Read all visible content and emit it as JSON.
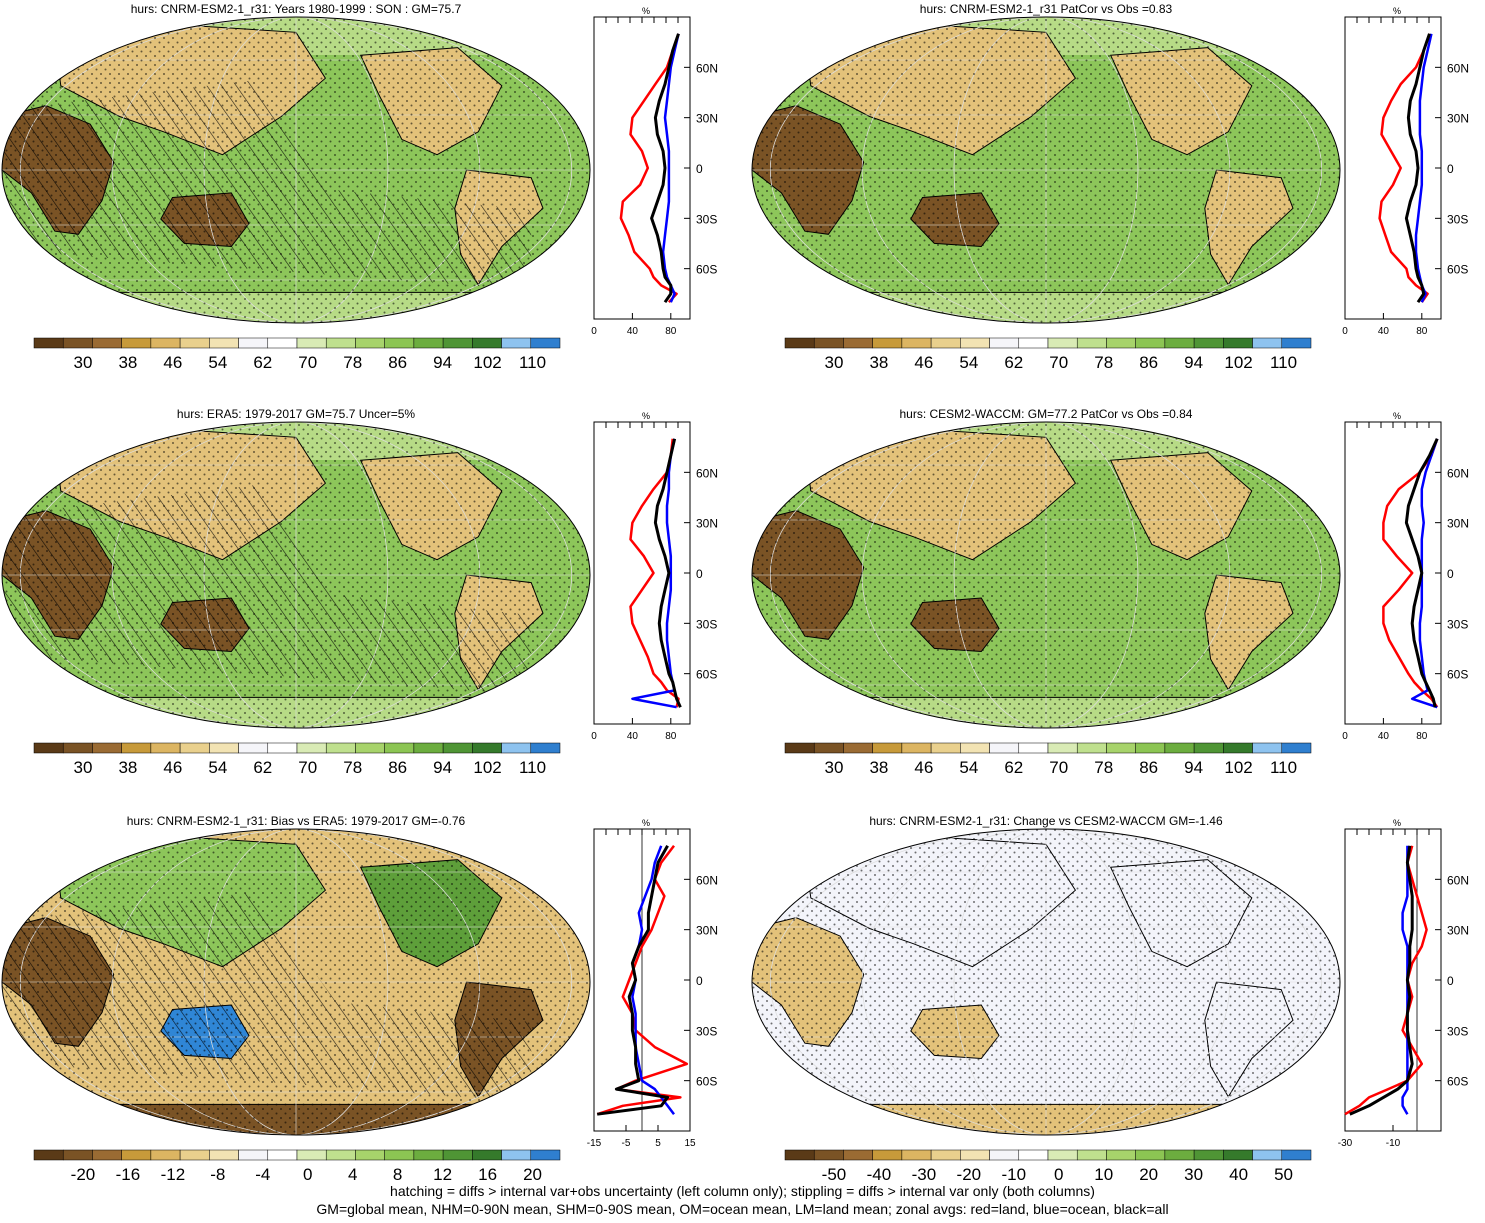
{
  "palettes": {
    "abs": [
      "#5a3a17",
      "#7a5325",
      "#9a6b33",
      "#c79a3a",
      "#dcb562",
      "#e9d08d",
      "#f2e3b3",
      "#f5f5f9",
      "#ffffff",
      "#d9ebb5",
      "#bfe08e",
      "#a7d36b",
      "#8cc553",
      "#6cad3f",
      "#4f9535",
      "#357a2b",
      "#8ec3ef",
      "#2f7fcf"
    ],
    "land_brown": "#7a5325",
    "land_tan": "#e3c27a",
    "light_green": "#b7db86",
    "mid_green": "#8dc65a",
    "dark_green": "#5e9f3a",
    "near_white": "#f3f4fa",
    "blue": "#2f86d6",
    "line_land": "#ff0000",
    "line_ocean": "#0000ff",
    "line_all": "#000000"
  },
  "panels": [
    {
      "id": "p1",
      "title": "hurs: CNRM-ESM2-1_r31: Years 1980-1999 : SON : GM=75.7",
      "kind": "abs",
      "hatch": true,
      "colorbar_labels": [
        "30",
        "38",
        "46",
        "54",
        "62",
        "70",
        "78",
        "86",
        "94",
        "102",
        "110"
      ]
    },
    {
      "id": "p2",
      "title": "hurs: CNRM-ESM2-1_r31 PatCor vs Obs =0.83",
      "kind": "abs",
      "hatch": false,
      "colorbar_labels": [
        "30",
        "38",
        "46",
        "54",
        "62",
        "70",
        "78",
        "86",
        "94",
        "102",
        "110"
      ]
    },
    {
      "id": "p3",
      "title": "hurs: ERA5: 1979-2017 GM=75.7 Uncer=5%",
      "kind": "abs",
      "hatch": true,
      "colorbar_labels": [
        "30",
        "38",
        "46",
        "54",
        "62",
        "70",
        "78",
        "86",
        "94",
        "102",
        "110"
      ]
    },
    {
      "id": "p4",
      "title": "hurs: CESM2-WACCM: GM=77.2 PatCor vs Obs =0.84",
      "kind": "abs",
      "hatch": false,
      "colorbar_labels": [
        "30",
        "38",
        "46",
        "54",
        "62",
        "70",
        "78",
        "86",
        "94",
        "102",
        "110"
      ]
    },
    {
      "id": "p5",
      "title": "hurs: CNRM-ESM2-1_r31: Bias vs ERA5: 1979-2017  GM=-0.76",
      "kind": "bias",
      "hatch": true,
      "colorbar_labels": [
        "-20",
        "-16",
        "-12",
        "-8",
        "-4",
        "0",
        "4",
        "8",
        "12",
        "16",
        "20"
      ]
    },
    {
      "id": "p6",
      "title": "hurs: CNRM-ESM2-1_r31: Change vs CESM2-WACCM GM=-1.46",
      "kind": "change",
      "hatch": false,
      "colorbar_labels": [
        "-50",
        "-40",
        "-30",
        "-20",
        "-10",
        "0",
        "10",
        "20",
        "30",
        "40",
        "50"
      ]
    }
  ],
  "chart_data": [
    {
      "type": "line",
      "panel": "p1",
      "title": "%",
      "xlim": [
        0,
        100
      ],
      "x_ticks": [
        "0",
        "40",
        "80"
      ],
      "y_ticks": [
        "60N",
        "30N",
        "0",
        "30S",
        "60S"
      ],
      "lat": [
        80,
        70,
        60,
        50,
        40,
        30,
        20,
        10,
        0,
        -10,
        -20,
        -30,
        -40,
        -50,
        -60,
        -65,
        -70,
        -75,
        -80
      ],
      "series": [
        {
          "name": "land",
          "color": "#ff0000",
          "values": [
            88,
            82,
            76,
            64,
            52,
            40,
            38,
            50,
            56,
            48,
            30,
            28,
            36,
            42,
            58,
            62,
            70,
            86,
            78
          ]
        },
        {
          "name": "ocean",
          "color": "#0000ff",
          "values": [
            88,
            84,
            80,
            78,
            76,
            74,
            76,
            78,
            78,
            78,
            78,
            76,
            74,
            72,
            74,
            76,
            80,
            84,
            80
          ]
        },
        {
          "name": "all",
          "color": "#000000",
          "values": [
            88,
            82,
            78,
            74,
            68,
            64,
            66,
            72,
            74,
            72,
            66,
            60,
            66,
            70,
            72,
            74,
            80,
            80,
            74
          ]
        }
      ]
    },
    {
      "type": "line",
      "panel": "p2",
      "title": "%",
      "xlim": [
        0,
        100
      ],
      "x_ticks": [
        "0",
        "40",
        "80"
      ],
      "y_ticks": [
        "60N",
        "30N",
        "0",
        "30S",
        "60S"
      ],
      "lat": [
        80,
        70,
        60,
        50,
        40,
        30,
        20,
        10,
        0,
        -10,
        -20,
        -30,
        -40,
        -50,
        -60,
        -65,
        -70,
        -75,
        -80
      ],
      "series": [
        {
          "name": "land",
          "color": "#ff0000",
          "values": [
            88,
            82,
            74,
            58,
            48,
            40,
            38,
            48,
            58,
            50,
            38,
            36,
            42,
            48,
            64,
            66,
            74,
            86,
            80
          ]
        },
        {
          "name": "ocean",
          "color": "#0000ff",
          "values": [
            90,
            86,
            82,
            80,
            78,
            78,
            78,
            80,
            80,
            80,
            78,
            76,
            74,
            74,
            76,
            78,
            80,
            84,
            80
          ]
        },
        {
          "name": "all",
          "color": "#000000",
          "values": [
            88,
            82,
            78,
            74,
            68,
            66,
            68,
            74,
            76,
            74,
            68,
            64,
            68,
            72,
            74,
            76,
            80,
            82,
            76
          ]
        }
      ]
    },
    {
      "type": "line",
      "panel": "p3",
      "title": "%",
      "xlim": [
        0,
        100
      ],
      "x_ticks": [
        "0",
        "40",
        "80"
      ],
      "y_ticks": [
        "60N",
        "30N",
        "0",
        "30S",
        "60S"
      ],
      "lat": [
        80,
        70,
        60,
        50,
        40,
        30,
        20,
        10,
        0,
        -10,
        -20,
        -30,
        -40,
        -50,
        -60,
        -65,
        -70,
        -75,
        -80
      ],
      "series": [
        {
          "name": "land",
          "color": "#ff0000",
          "values": [
            82,
            80,
            76,
            62,
            50,
            40,
            38,
            52,
            62,
            50,
            38,
            40,
            48,
            56,
            62,
            70,
            76,
            88,
            86
          ]
        },
        {
          "name": "ocean",
          "color": "#0000ff",
          "values": [
            84,
            80,
            78,
            78,
            76,
            76,
            78,
            80,
            80,
            80,
            78,
            76,
            76,
            78,
            80,
            82,
            84,
            40,
            86
          ]
        },
        {
          "name": "all",
          "color": "#000000",
          "values": [
            84,
            80,
            76,
            72,
            66,
            64,
            68,
            74,
            78,
            74,
            70,
            68,
            70,
            74,
            78,
            82,
            84,
            86,
            90
          ]
        }
      ]
    },
    {
      "type": "line",
      "panel": "p4",
      "title": "%",
      "xlim": [
        0,
        100
      ],
      "x_ticks": [
        "0",
        "40",
        "80"
      ],
      "y_ticks": [
        "60N",
        "30N",
        "0",
        "30S",
        "60S"
      ],
      "lat": [
        80,
        70,
        60,
        50,
        40,
        30,
        20,
        10,
        0,
        -10,
        -20,
        -30,
        -40,
        -50,
        -60,
        -65,
        -70,
        -75,
        -80
      ],
      "series": [
        {
          "name": "land",
          "color": "#ff0000",
          "values": [
            96,
            90,
            78,
            56,
            44,
            40,
            40,
            54,
            70,
            56,
            40,
            40,
            46,
            56,
            66,
            72,
            80,
            90,
            96
          ]
        },
        {
          "name": "ocean",
          "color": "#0000ff",
          "values": [
            96,
            90,
            84,
            80,
            80,
            82,
            80,
            80,
            80,
            80,
            80,
            78,
            78,
            80,
            82,
            84,
            86,
            70,
            96
          ]
        },
        {
          "name": "all",
          "color": "#000000",
          "values": [
            96,
            88,
            78,
            72,
            66,
            64,
            70,
            76,
            80,
            76,
            72,
            70,
            72,
            76,
            80,
            84,
            88,
            92,
            94
          ]
        }
      ]
    },
    {
      "type": "line",
      "panel": "p5",
      "title": "%",
      "xlim": [
        -15,
        15
      ],
      "x_ticks": [
        "-15",
        "-5",
        "5",
        "15"
      ],
      "y_ticks": [
        "60N",
        "30N",
        "0",
        "30S",
        "60S"
      ],
      "lat": [
        80,
        70,
        60,
        50,
        40,
        30,
        20,
        10,
        0,
        -10,
        -20,
        -30,
        -40,
        -50,
        -60,
        -65,
        -70,
        -75,
        -80
      ],
      "series": [
        {
          "name": "land",
          "color": "#ff0000",
          "values": [
            10,
            6,
            4,
            7,
            5,
            3,
            0,
            -2,
            -4,
            -6,
            -3,
            -2,
            4,
            14,
            -2,
            -8,
            12,
            -6,
            -14
          ]
        },
        {
          "name": "ocean",
          "color": "#0000ff",
          "values": [
            6,
            4,
            3,
            1,
            -1,
            0,
            -1,
            -3,
            -2,
            -3,
            -2,
            -2,
            -2,
            -1,
            0,
            4,
            6,
            8,
            10
          ]
        },
        {
          "name": "all",
          "color": "#000000",
          "values": [
            8,
            5,
            4,
            3,
            2,
            2,
            -1,
            -3,
            -2,
            -4,
            -3,
            -3,
            -2,
            -2,
            -1,
            -8,
            8,
            6,
            -14
          ]
        }
      ]
    },
    {
      "type": "line",
      "panel": "p6",
      "title": "%",
      "xlim": [
        -30,
        10
      ],
      "x_ticks": [
        "-30",
        "-10"
      ],
      "y_ticks": [
        "60N",
        "30N",
        "0",
        "30S",
        "60S"
      ],
      "lat": [
        80,
        70,
        60,
        50,
        40,
        30,
        20,
        10,
        0,
        -10,
        -20,
        -30,
        -40,
        -50,
        -60,
        -65,
        -70,
        -75,
        -80
      ],
      "series": [
        {
          "name": "land",
          "color": "#ff0000",
          "values": [
            -2,
            -4,
            -2,
            0,
            2,
            4,
            2,
            -2,
            -4,
            -2,
            -4,
            -6,
            -2,
            2,
            -4,
            -12,
            -20,
            -24,
            -30
          ]
        },
        {
          "name": "ocean",
          "color": "#0000ff",
          "values": [
            -4,
            -4,
            -4,
            -4,
            -6,
            -6,
            -4,
            -4,
            -4,
            -4,
            -4,
            -4,
            -4,
            -4,
            -4,
            -4,
            -6,
            -6,
            -4
          ]
        },
        {
          "name": "all",
          "color": "#000000",
          "values": [
            -3,
            -4,
            -3,
            -2,
            -2,
            -2,
            -3,
            -3,
            -4,
            -3,
            -4,
            -4,
            -3,
            -2,
            -4,
            -8,
            -14,
            -20,
            -28
          ]
        }
      ]
    }
  ],
  "footer": {
    "line1": "hatching = diffs > internal var+obs uncertainty (left column only); stippling = diffs > internal var only (both columns)",
    "line2": "GM=global mean, NHM=0-90N mean, SHM=0-90S mean, OM=ocean mean, LM=land mean; zonal avgs: red=land, blue=ocean, black=all"
  }
}
